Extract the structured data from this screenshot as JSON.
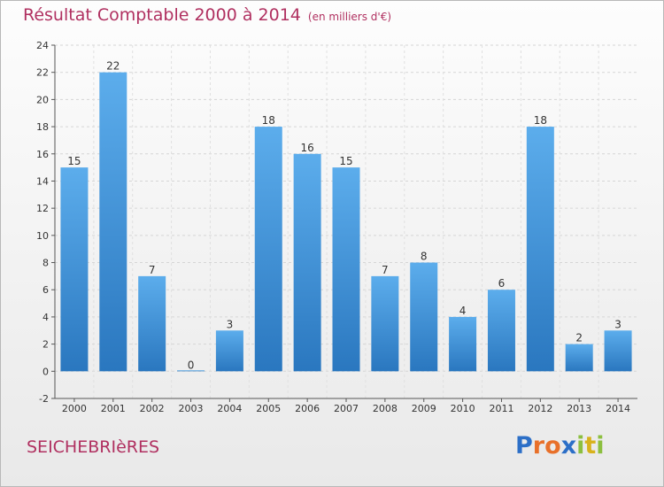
{
  "header": {
    "title": "Résultat Comptable 2000 à 2014",
    "subtitle": "(en milliers d'€)"
  },
  "footer": {
    "town": "SEICHEBRIèRES",
    "logo_letters": [
      "P",
      "r",
      "o",
      "x",
      "i",
      "t",
      "i"
    ],
    "logo_colors": [
      "#2c6fc7",
      "#e8702a",
      "#e8702a",
      "#2c6fc7",
      "#8cbf3f",
      "#d8b21c",
      "#8cbf3f"
    ]
  },
  "chart_data": {
    "type": "bar",
    "title": "Résultat Comptable 2000 à 2014",
    "xlabel": "",
    "ylabel": "",
    "ylim": [
      -2,
      24
    ],
    "yticks": [
      -2,
      0,
      2,
      4,
      6,
      8,
      10,
      12,
      14,
      16,
      18,
      20,
      22,
      24
    ],
    "categories": [
      "2000",
      "2001",
      "2002",
      "2003",
      "2004",
      "2005",
      "2006",
      "2007",
      "2008",
      "2009",
      "2010",
      "2011",
      "2012",
      "2013",
      "2014"
    ],
    "values": [
      15,
      22,
      7,
      0,
      3,
      18,
      16,
      15,
      7,
      8,
      4,
      6,
      18,
      2,
      3
    ],
    "grid": true,
    "bar_color": "#3b8ede"
  }
}
